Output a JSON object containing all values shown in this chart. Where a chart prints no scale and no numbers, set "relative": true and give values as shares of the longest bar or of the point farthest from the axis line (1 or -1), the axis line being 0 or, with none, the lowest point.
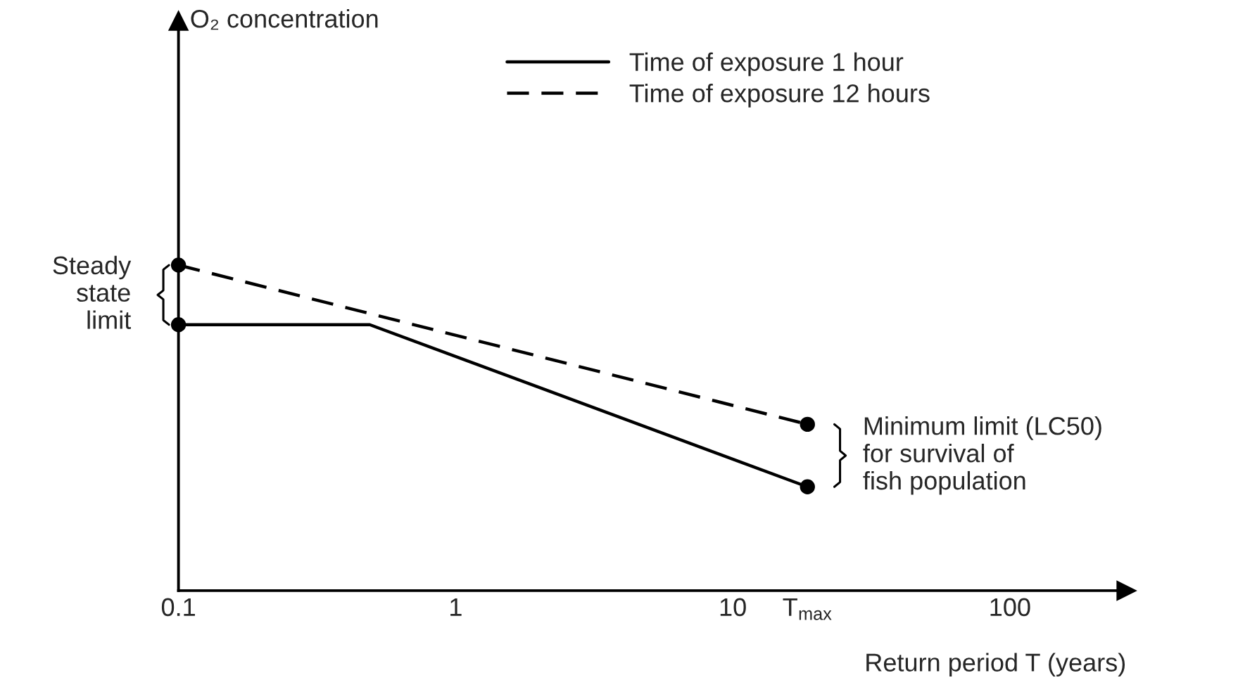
{
  "chart_data": {
    "type": "line",
    "relative": true,
    "log": "x",
    "xlabel": "Return period T (years)",
    "xlim": [
      0.1,
      263
    ],
    "xticks": [
      0.1,
      1,
      10,
      {
        "value": 18.6,
        "label": "T$_{max}$"
      },
      100
    ],
    "legend": "top",
    "grid": false,
    "tick_labels": "x",
    "series": [
      {
        "name": "Time of exposure 1 hour",
        "color": "#000000",
        "line_style": "solid",
        "marker": "none",
        "x": [
          0.1,
          0.49,
          18.6
        ],
        "values": [
          0.817,
          0.817,
          0.319
        ]
      },
      {
        "name": "Time of exposure 12 hours",
        "color": "#000000",
        "line_style": "dashed",
        "marker": "none",
        "x": [
          0.1,
          18.6
        ],
        "values": [
          1,
          0.511
        ]
      },
      {
        "type": "scatter",
        "color": "#000000",
        "marker": "circle",
        "x": [
          0.1,
          0.1,
          18.6,
          18.6
        ],
        "values": [
          1,
          0.817,
          0.511,
          0.319
        ]
      }
    ],
    "annotations": [
      "O₂ concentration",
      "Steady\nstate\nlimit",
      "Minimum limit (LC50)\nfor survival of\nfish population"
    ]
  }
}
